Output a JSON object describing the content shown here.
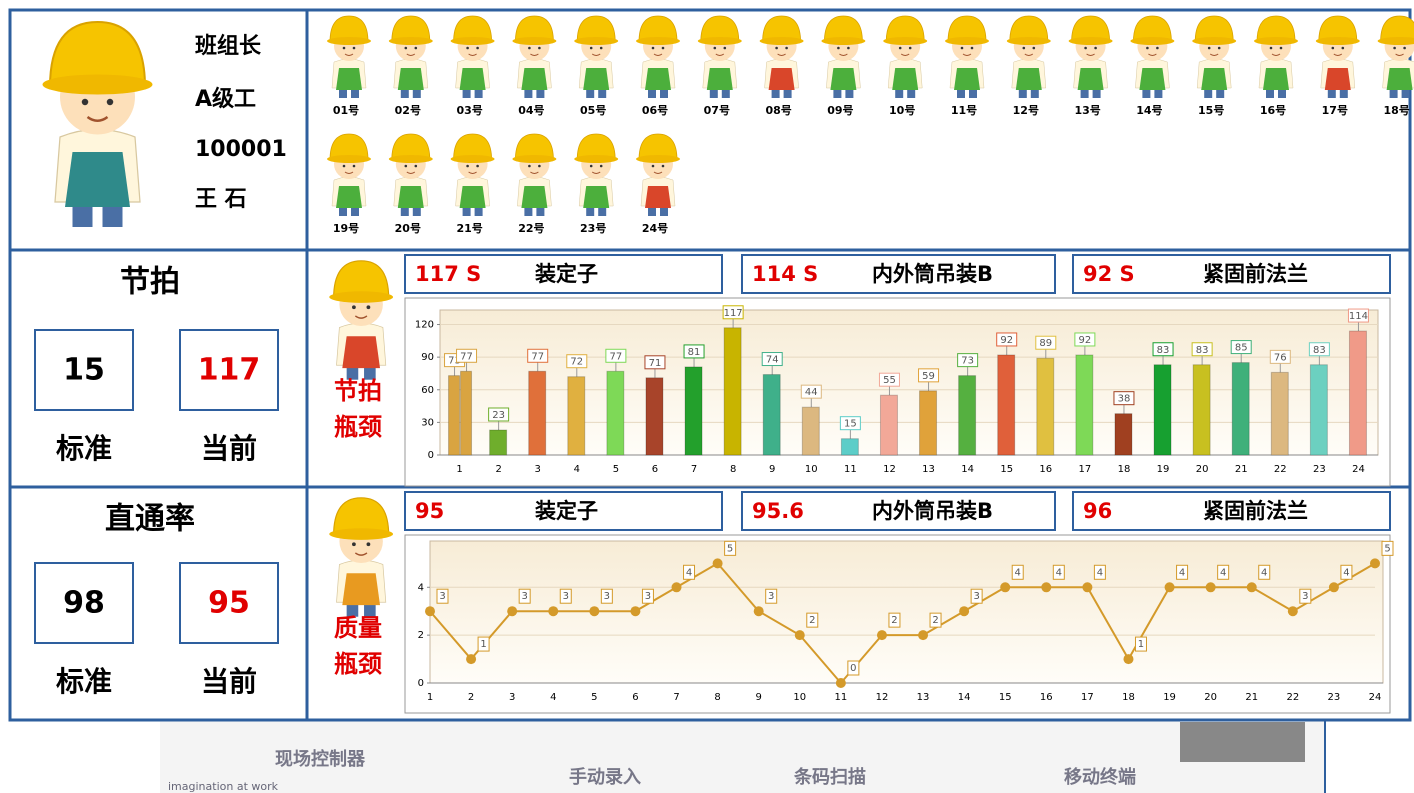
{
  "leader": {
    "role": "班组长",
    "grade": "A级工",
    "id": "100001",
    "name": "王 石"
  },
  "workers": [
    {
      "label": "01号",
      "apron": "#4caf3c"
    },
    {
      "label": "02号",
      "apron": "#4caf3c"
    },
    {
      "label": "03号",
      "apron": "#4caf3c"
    },
    {
      "label": "04号",
      "apron": "#4caf3c"
    },
    {
      "label": "05号",
      "apron": "#4caf3c"
    },
    {
      "label": "06号",
      "apron": "#4caf3c"
    },
    {
      "label": "07号",
      "apron": "#4caf3c"
    },
    {
      "label": "08号",
      "apron": "#d9462a"
    },
    {
      "label": "09号",
      "apron": "#4caf3c"
    },
    {
      "label": "10号",
      "apron": "#4caf3c"
    },
    {
      "label": "11号",
      "apron": "#4caf3c"
    },
    {
      "label": "12号",
      "apron": "#4caf3c"
    },
    {
      "label": "13号",
      "apron": "#4caf3c"
    },
    {
      "label": "14号",
      "apron": "#4caf3c"
    },
    {
      "label": "15号",
      "apron": "#4caf3c"
    },
    {
      "label": "16号",
      "apron": "#4caf3c"
    },
    {
      "label": "17号",
      "apron": "#d9462a"
    },
    {
      "label": "18号",
      "apron": "#4caf3c"
    },
    {
      "label": "19号",
      "apron": "#4caf3c"
    },
    {
      "label": "20号",
      "apron": "#4caf3c"
    },
    {
      "label": "21号",
      "apron": "#4caf3c"
    },
    {
      "label": "22号",
      "apron": "#4caf3c"
    },
    {
      "label": "23号",
      "apron": "#4caf3c"
    },
    {
      "label": "24号",
      "apron": "#d9462a"
    }
  ],
  "tempo": {
    "title": "节拍",
    "standard": 15,
    "current": 117,
    "standard_label": "标准",
    "current_label": "当前",
    "bottleneck_label": "节拍瓶颈",
    "bottlenecks": [
      {
        "value": "117 S",
        "station": "装定子"
      },
      {
        "value": "114 S",
        "station": "内外筒吊装B"
      },
      {
        "value": "92 S",
        "station": "紧固前法兰"
      }
    ]
  },
  "quality": {
    "title": "直通率",
    "standard": 98,
    "current": 95,
    "standard_label": "标准",
    "current_label": "当前",
    "bottleneck_label": "质量瓶颈",
    "bottlenecks": [
      {
        "value": "95",
        "station": "装定子"
      },
      {
        "value": "95.6",
        "station": "内外筒吊装B"
      },
      {
        "value": "96",
        "station": "紧固前法兰"
      }
    ]
  },
  "chart_data": [
    {
      "type": "bar",
      "categories": [
        "1",
        "2",
        "3",
        "4",
        "5",
        "6",
        "7",
        "8",
        "9",
        "10",
        "11",
        "12",
        "13",
        "14",
        "15",
        "16",
        "17",
        "18",
        "19",
        "20",
        "21",
        "22",
        "23",
        "24"
      ],
      "series": [
        {
          "color": "#d9a441",
          "values": [
            73,
            null,
            null,
            null,
            null,
            null,
            null,
            null,
            null,
            null,
            null,
            null,
            null,
            null,
            null,
            null,
            null,
            null,
            null,
            null,
            null,
            null,
            null,
            null
          ]
        },
        {
          "colors": [
            "#d9a441",
            "#6fae2c",
            "#e0703a",
            "#e0b040",
            "#7ed957",
            "#a8442a",
            "#23a02c",
            "#c8b400",
            "#3fb08a",
            "#dcb880",
            "#5ccdc8",
            "#f2a898",
            "#e0a23a",
            "#55b040",
            "#e0603a",
            "#e0c040",
            "#7ed957",
            "#a04020",
            "#17a030",
            "#c8c020",
            "#3fb07a",
            "#dcb880",
            "#6cd0c0",
            "#f09a88"
          ],
          "values": [
            77,
            23,
            77,
            72,
            77,
            71,
            81,
            117,
            74,
            44,
            15,
            55,
            59,
            73,
            92,
            89,
            92,
            38,
            83,
            83,
            85,
            76,
            83,
            114
          ]
        }
      ],
      "ylim": [
        0,
        126
      ],
      "yticks": [
        0,
        30,
        60,
        90,
        120
      ],
      "grid": true
    },
    {
      "type": "line",
      "categories": [
        "1",
        "2",
        "3",
        "4",
        "5",
        "6",
        "7",
        "8",
        "9",
        "10",
        "11",
        "12",
        "13",
        "14",
        "15",
        "16",
        "17",
        "18",
        "19",
        "20",
        "21",
        "22",
        "23",
        "24"
      ],
      "values": [
        3,
        1,
        3,
        3,
        3,
        3,
        4,
        5,
        3,
        2,
        0,
        2,
        2,
        3,
        4,
        4,
        4,
        1,
        4,
        4,
        4,
        3,
        4,
        5
      ],
      "color": "#d49a2a",
      "ylim": [
        0,
        5.6
      ],
      "yticks": [
        0,
        2,
        4
      ],
      "grid": true
    }
  ],
  "footer": {
    "items": [
      "现场控制器",
      "手动录入",
      "条码扫描",
      "移动终端"
    ],
    "slogan": "imagination at work"
  }
}
